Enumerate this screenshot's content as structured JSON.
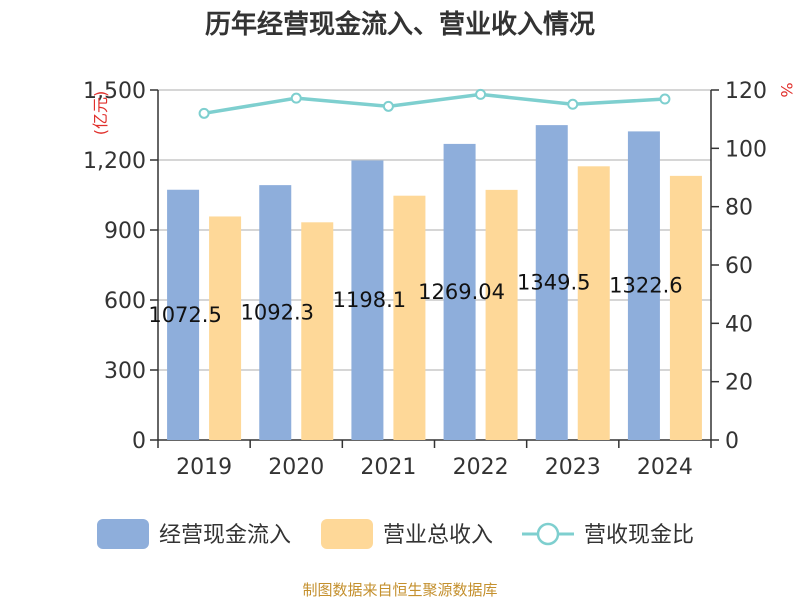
{
  "chart_data": {
    "type": "bar",
    "title": "历年经营现金流入、营业收入情况",
    "categories": [
      "2019",
      "2020",
      "2021",
      "2022",
      "2023",
      "2024"
    ],
    "series": [
      {
        "name": "经营现金流入",
        "type": "bar",
        "axis": "left",
        "color": "#8eaedb",
        "values": [
          1072.5,
          1092.3,
          1198.1,
          1269.0,
          1349.5,
          1322.6
        ]
      },
      {
        "name": "营业总收入",
        "type": "bar",
        "axis": "left",
        "color": "#fed898",
        "values": [
          958,
          933,
          1047,
          1072,
          1173,
          1132
        ]
      },
      {
        "name": "营收现金比",
        "type": "line",
        "axis": "right",
        "color": "#7ecfcf",
        "values": [
          112.0,
          117.2,
          114.4,
          118.5,
          115.1,
          116.9
        ]
      }
    ],
    "data_labels": [
      "1072.5",
      "1092.3",
      "1198.1",
      "1269.04",
      "1349.5",
      "1322.6"
    ],
    "y_left": {
      "unit": "(亿元)",
      "ylim": [
        0,
        1500
      ],
      "ticks": [
        "0",
        "300",
        "600",
        "900",
        "1,200",
        "1,500"
      ]
    },
    "y_right": {
      "unit": "%",
      "ylim": [
        0,
        120
      ],
      "ticks": [
        "0",
        "20",
        "40",
        "60",
        "80",
        "100",
        "120"
      ]
    },
    "grid": true,
    "legend_position": "bottom",
    "source": "制图数据来自恒生聚源数据库"
  }
}
